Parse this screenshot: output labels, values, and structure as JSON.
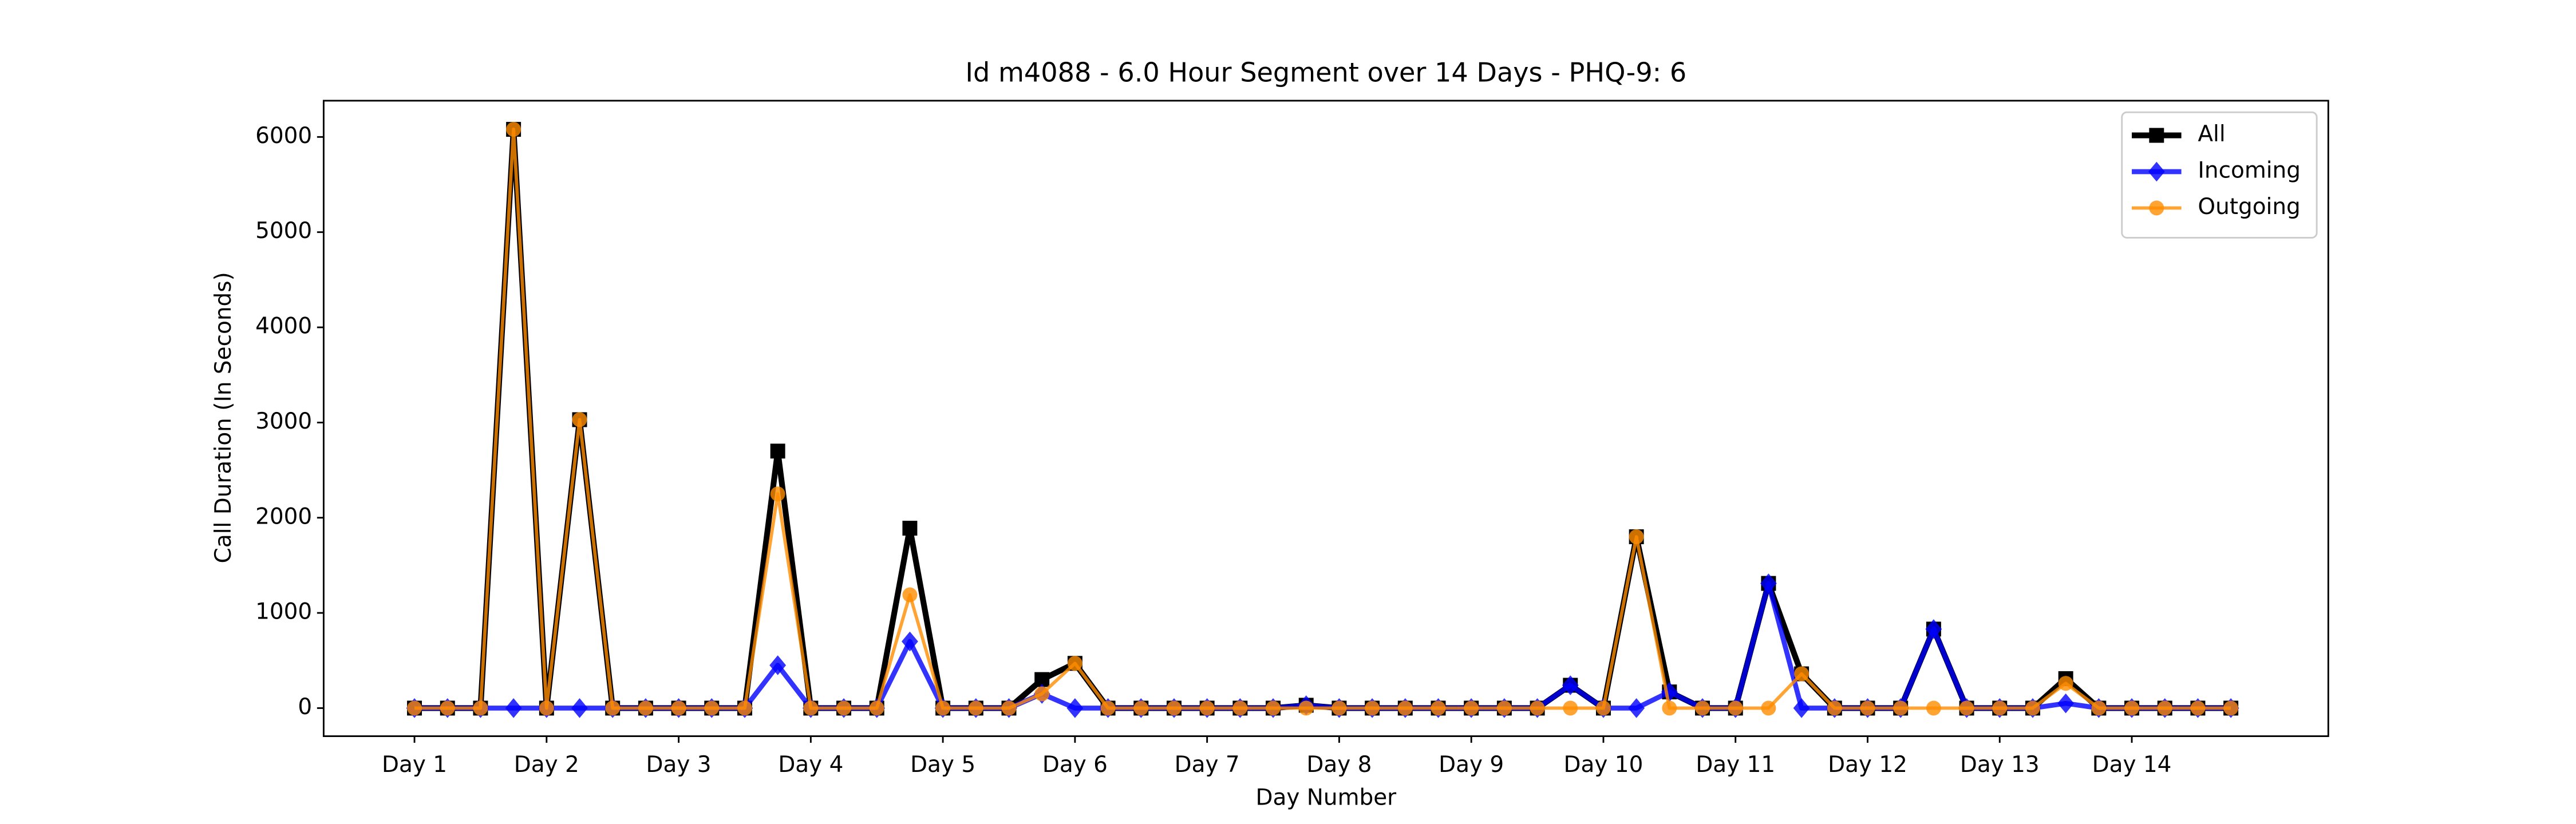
{
  "chart_data": {
    "type": "line",
    "title": "Id m4088 - 6.0 Hour Segment over 14 Days - PHQ-9: 6",
    "xlabel": "Day Number",
    "ylabel": "Call Duration (In Seconds)",
    "x": [
      0,
      1,
      2,
      3,
      4,
      5,
      6,
      7,
      8,
      9,
      10,
      11,
      12,
      13,
      14,
      15,
      16,
      17,
      18,
      19,
      20,
      21,
      22,
      23,
      24,
      25,
      26,
      27,
      28,
      29,
      30,
      31,
      32,
      33,
      34,
      35,
      36,
      37,
      38,
      39,
      40,
      41,
      42,
      43,
      44,
      45,
      46,
      47,
      48,
      49,
      50,
      51,
      52,
      53,
      54,
      55
    ],
    "series": [
      {
        "name": "All",
        "color": "#000000",
        "marker": "square",
        "values": [
          0,
          0,
          0,
          6080,
          0,
          3030,
          0,
          0,
          0,
          0,
          0,
          2700,
          0,
          0,
          0,
          1890,
          0,
          0,
          0,
          300,
          470,
          0,
          0,
          0,
          0,
          0,
          0,
          30,
          0,
          0,
          0,
          0,
          0,
          0,
          0,
          240,
          0,
          1800,
          170,
          0,
          0,
          1310,
          360,
          0,
          0,
          0,
          830,
          0,
          0,
          0,
          310,
          0,
          0,
          0,
          0,
          0
        ]
      },
      {
        "name": "Incoming",
        "color": "#0000ff",
        "marker": "diamond",
        "values": [
          0,
          0,
          0,
          0,
          0,
          0,
          0,
          0,
          0,
          0,
          0,
          450,
          0,
          0,
          0,
          700,
          0,
          0,
          0,
          150,
          0,
          0,
          0,
          0,
          0,
          0,
          0,
          30,
          0,
          0,
          0,
          0,
          0,
          0,
          0,
          240,
          0,
          0,
          170,
          0,
          0,
          1310,
          0,
          0,
          0,
          0,
          830,
          0,
          0,
          0,
          50,
          0,
          0,
          0,
          0,
          0
        ]
      },
      {
        "name": "Outgoing",
        "color": "#ff8c00",
        "marker": "circle",
        "values": [
          0,
          0,
          0,
          6080,
          0,
          3030,
          0,
          0,
          0,
          0,
          0,
          2250,
          0,
          0,
          0,
          1190,
          0,
          0,
          0,
          150,
          470,
          0,
          0,
          0,
          0,
          0,
          0,
          0,
          0,
          0,
          0,
          0,
          0,
          0,
          0,
          0,
          0,
          1800,
          0,
          0,
          0,
          0,
          360,
          0,
          0,
          0,
          0,
          0,
          0,
          0,
          260,
          0,
          0,
          0,
          0,
          0
        ]
      }
    ],
    "xlim": [
      -2.75,
      57.95
    ],
    "xticks": [
      {
        "value": 0,
        "label": "Day 1"
      },
      {
        "value": 4,
        "label": "Day 2"
      },
      {
        "value": 8,
        "label": "Day 3"
      },
      {
        "value": 12,
        "label": "Day 4"
      },
      {
        "value": 16,
        "label": "Day 5"
      },
      {
        "value": 20,
        "label": "Day 6"
      },
      {
        "value": 24,
        "label": "Day 7"
      },
      {
        "value": 28,
        "label": "Day 8"
      },
      {
        "value": 32,
        "label": "Day 9"
      },
      {
        "value": 36,
        "label": "Day 10"
      },
      {
        "value": 40,
        "label": "Day 11"
      },
      {
        "value": 44,
        "label": "Day 12"
      },
      {
        "value": 48,
        "label": "Day 13"
      },
      {
        "value": 52,
        "label": "Day 14"
      }
    ],
    "ylim": [
      -295,
      6381
    ],
    "yticks": [
      0,
      1000,
      2000,
      3000,
      4000,
      5000,
      6000
    ],
    "legend": "upper right"
  }
}
